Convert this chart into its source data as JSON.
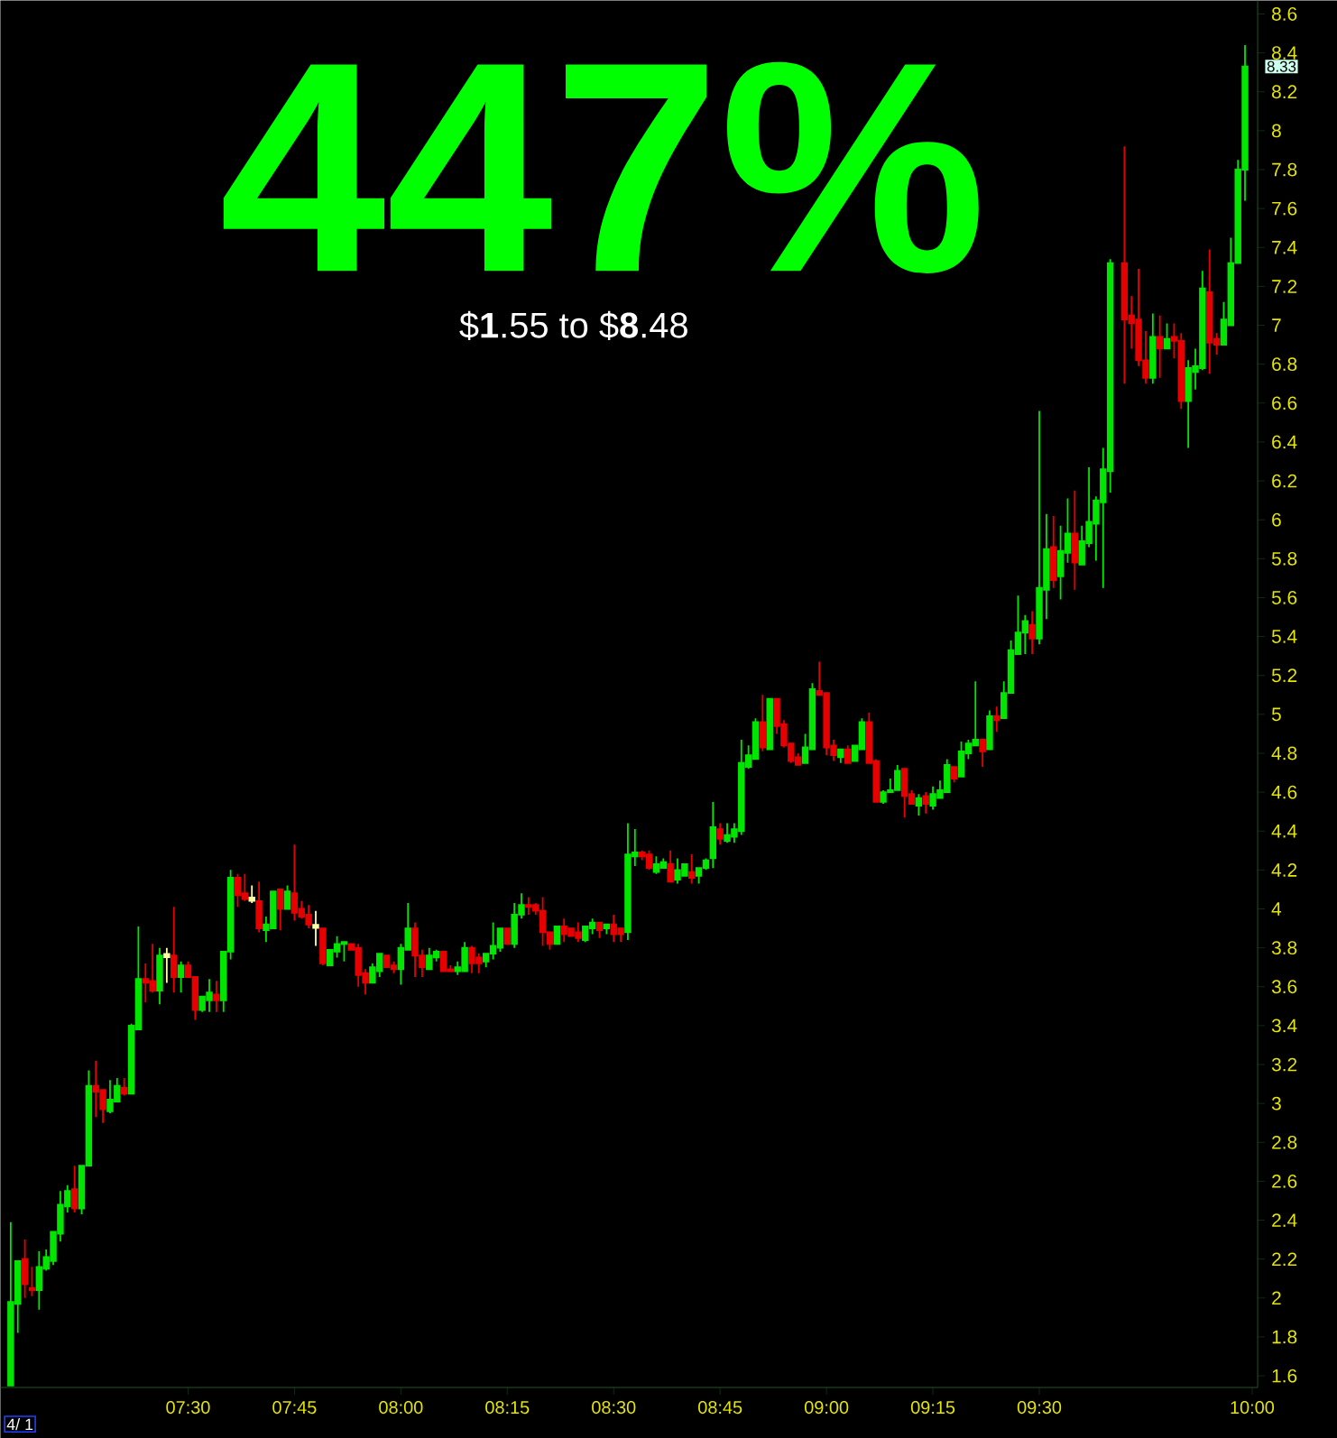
{
  "chart_data": {
    "type": "candlestick",
    "title": "447%",
    "subtitle": "$**1**.55 to $**8**.48",
    "annotations": [
      "4/ 1",
      {
        "text": "8.33",
        "x": 9.9833,
        "y": 8.33
      }
    ],
    "xlim": [
      7.059,
      10.013
    ],
    "ylim": [
      1.54,
      8.67
    ],
    "xticks": [
      {
        "value": 7.5,
        "label": "07:30"
      },
      {
        "value": 7.75,
        "label": "07:45"
      },
      {
        "value": 8,
        "label": "08:00"
      },
      {
        "value": 8.25,
        "label": "08:15"
      },
      {
        "value": 8.5,
        "label": "08:30"
      },
      {
        "value": 8.75,
        "label": "08:45"
      },
      {
        "value": 9,
        "label": "09:00"
      },
      {
        "value": 9.25,
        "label": "09:15"
      },
      {
        "value": 9.5,
        "label": "09:30"
      },
      {
        "value": 10,
        "label": "10:00"
      }
    ],
    "yticks": [
      1.6,
      1.8,
      2,
      2.2,
      2.4,
      2.6,
      2.8,
      3,
      3.2,
      3.4,
      3.6,
      3.8,
      4,
      4.2,
      4.4,
      4.6,
      4.8,
      5,
      5.2,
      5.4,
      5.6,
      5.8,
      6,
      6.2,
      6.4,
      6.6,
      6.8,
      7,
      7.2,
      7.4,
      7.6,
      7.8,
      8,
      8.2,
      8.4,
      8.6
    ],
    "x": [
      7.0833,
      7.1,
      7.1167,
      7.1333,
      7.15,
      7.1667,
      7.1833,
      7.2,
      7.2167,
      7.2333,
      7.25,
      7.2667,
      7.2833,
      7.3,
      7.3167,
      7.3333,
      7.35,
      7.3667,
      7.3833,
      7.4,
      7.4167,
      7.4333,
      7.45,
      7.4667,
      7.4833,
      7.5,
      7.5167,
      7.5333,
      7.55,
      7.5667,
      7.5833,
      7.6,
      7.6167,
      7.6333,
      7.65,
      7.6667,
      7.6833,
      7.7,
      7.7167,
      7.7333,
      7.75,
      7.7667,
      7.7833,
      7.8,
      7.8167,
      7.8333,
      7.85,
      7.8667,
      7.8833,
      7.9,
      7.9167,
      7.9333,
      7.95,
      7.9667,
      7.9833,
      8,
      8.0167,
      8.0333,
      8.05,
      8.0667,
      8.0833,
      8.1,
      8.1167,
      8.1333,
      8.15,
      8.1667,
      8.1833,
      8.2,
      8.2167,
      8.2333,
      8.25,
      8.2667,
      8.2833,
      8.3,
      8.3167,
      8.3333,
      8.35,
      8.3667,
      8.3833,
      8.4,
      8.4167,
      8.4333,
      8.45,
      8.4667,
      8.4833,
      8.5,
      8.5167,
      8.5333,
      8.55,
      8.5667,
      8.5833,
      8.6,
      8.6167,
      8.6333,
      8.65,
      8.6667,
      8.6833,
      8.7,
      8.7167,
      8.7333,
      8.75,
      8.7667,
      8.7833,
      8.8,
      8.8167,
      8.8333,
      8.85,
      8.8667,
      8.8833,
      8.9,
      8.9167,
      8.9333,
      8.95,
      8.9667,
      8.9833,
      9,
      9.0167,
      9.0333,
      9.05,
      9.0667,
      9.0833,
      9.1,
      9.1167,
      9.1333,
      9.15,
      9.1667,
      9.1833,
      9.2,
      9.2167,
      9.2333,
      9.25,
      9.2667,
      9.2833,
      9.3,
      9.3167,
      9.3333,
      9.35,
      9.3667,
      9.3833,
      9.4,
      9.4167,
      9.4333,
      9.45,
      9.4667,
      9.4833,
      9.5,
      9.5167,
      9.5333,
      9.55,
      9.5667,
      9.5833,
      9.6,
      9.6167,
      9.6333,
      9.65,
      9.6667,
      9.7,
      9.7167,
      9.7333,
      9.75,
      9.7667,
      9.7833,
      9.8,
      9.8167,
      9.8333,
      9.85,
      9.8667,
      9.8833,
      9.9,
      9.9167,
      9.9333,
      9.95,
      9.9667,
      9.9833
    ],
    "ohlc": [
      [
        1.55,
        2.39,
        1.55,
        1.98
      ],
      [
        1.97,
        2.19,
        1.82,
        2.19
      ],
      [
        2.2,
        2.3,
        2.0,
        2.07
      ],
      [
        2.05,
        2.16,
        2.01,
        2.04
      ],
      [
        2.04,
        2.24,
        1.94,
        2.16
      ],
      [
        2.15,
        2.25,
        2.14,
        2.21
      ],
      [
        2.19,
        2.34,
        2.17,
        2.34
      ],
      [
        2.33,
        2.55,
        2.29,
        2.48
      ],
      [
        2.47,
        2.58,
        2.44,
        2.55
      ],
      [
        2.56,
        2.68,
        2.44,
        2.46
      ],
      [
        2.46,
        2.68,
        2.43,
        2.68
      ],
      [
        2.68,
        3.17,
        2.68,
        3.09
      ],
      [
        3.09,
        3.22,
        2.93,
        3.06
      ],
      [
        3.07,
        3.07,
        2.9,
        2.97
      ],
      [
        2.96,
        3.12,
        2.95,
        3.02
      ],
      [
        3.01,
        3.13,
        3.01,
        3.09
      ],
      [
        3.08,
        3.13,
        3.04,
        3.05
      ],
      [
        3.05,
        3.41,
        3.05,
        3.4
      ],
      [
        3.38,
        3.91,
        3.38,
        3.64
      ],
      [
        3.64,
        3.72,
        3.52,
        3.62
      ],
      [
        3.63,
        3.82,
        3.57,
        3.58
      ],
      [
        3.58,
        3.8,
        3.51,
        3.76
      ],
      [
        3.76,
        3.8,
        3.62,
        3.76
      ],
      [
        3.76,
        4.01,
        3.57,
        3.65
      ],
      [
        3.65,
        3.73,
        3.57,
        3.71
      ],
      [
        3.71,
        3.73,
        3.65,
        3.65
      ],
      [
        3.65,
        3.65,
        3.43,
        3.48
      ],
      [
        3.48,
        3.55,
        3.47,
        3.55
      ],
      [
        3.53,
        3.64,
        3.47,
        3.57
      ],
      [
        3.56,
        3.63,
        3.47,
        3.53
      ],
      [
        3.53,
        3.78,
        3.47,
        3.78
      ],
      [
        3.78,
        4.2,
        3.74,
        4.16
      ],
      [
        4.16,
        4.18,
        4.01,
        4.07
      ],
      [
        4.08,
        4.18,
        4.04,
        4.05
      ],
      [
        4.05,
        4.12,
        4.03,
        4.05
      ],
      [
        4.04,
        4.14,
        3.88,
        3.9
      ],
      [
        3.89,
        3.96,
        3.83,
        3.92
      ],
      [
        3.9,
        4.09,
        3.9,
        4.09
      ],
      [
        4.1,
        4.1,
        3.89,
        4.0
      ],
      [
        4.0,
        4.12,
        4.0,
        4.09
      ],
      [
        4.08,
        4.33,
        3.94,
        3.98
      ],
      [
        4.0,
        4.04,
        3.95,
        3.96
      ],
      [
        3.97,
        4.02,
        3.9,
        3.92
      ],
      [
        3.91,
        3.99,
        3.81,
        3.91
      ],
      [
        3.9,
        3.9,
        3.71,
        3.72
      ],
      [
        3.71,
        3.79,
        3.71,
        3.79
      ],
      [
        3.78,
        3.86,
        3.75,
        3.82
      ],
      [
        3.82,
        3.83,
        3.73,
        3.83
      ],
      [
        3.82,
        3.82,
        3.79,
        3.79
      ],
      [
        3.8,
        3.82,
        3.6,
        3.66
      ],
      [
        3.67,
        3.69,
        3.56,
        3.62
      ],
      [
        3.62,
        3.72,
        3.62,
        3.7
      ],
      [
        3.68,
        3.77,
        3.65,
        3.77
      ],
      [
        3.76,
        3.76,
        3.7,
        3.7
      ],
      [
        3.71,
        3.73,
        3.67,
        3.69
      ],
      [
        3.69,
        3.82,
        3.61,
        3.8
      ],
      [
        3.79,
        4.03,
        3.79,
        3.9
      ],
      [
        3.9,
        3.93,
        3.65,
        3.76
      ],
      [
        3.76,
        3.79,
        3.65,
        3.7
      ],
      [
        3.69,
        3.8,
        3.69,
        3.76
      ],
      [
        3.75,
        3.79,
        3.73,
        3.78
      ],
      [
        3.78,
        3.78,
        3.68,
        3.68
      ],
      [
        3.69,
        3.71,
        3.68,
        3.68
      ],
      [
        3.68,
        3.73,
        3.66,
        3.7
      ],
      [
        3.68,
        3.83,
        3.68,
        3.8
      ],
      [
        3.8,
        3.81,
        3.67,
        3.72
      ],
      [
        3.75,
        3.77,
        3.67,
        3.72
      ],
      [
        3.73,
        3.77,
        3.7,
        3.77
      ],
      [
        3.77,
        3.93,
        3.74,
        3.81
      ],
      [
        3.8,
        3.9,
        3.78,
        3.9
      ],
      [
        3.9,
        3.9,
        3.82,
        3.82
      ],
      [
        3.82,
        4.03,
        3.8,
        3.97
      ],
      [
        3.97,
        4.08,
        3.95,
        4.02
      ],
      [
        4.02,
        4.06,
        3.97,
        4.01
      ],
      [
        4.02,
        4.03,
        3.97,
        3.99
      ],
      [
        3.99,
        4.06,
        3.81,
        3.88
      ],
      [
        3.88,
        3.88,
        3.79,
        3.82
      ],
      [
        3.82,
        3.91,
        3.82,
        3.91
      ],
      [
        3.91,
        3.95,
        3.83,
        3.87
      ],
      [
        3.9,
        3.9,
        3.86,
        3.86
      ],
      [
        3.88,
        3.93,
        3.83,
        3.85
      ],
      [
        3.84,
        3.91,
        3.83,
        3.91
      ],
      [
        3.9,
        3.95,
        3.87,
        3.93
      ],
      [
        3.93,
        3.93,
        3.85,
        3.89
      ],
      [
        3.9,
        3.92,
        3.87,
        3.92
      ],
      [
        3.92,
        3.97,
        3.83,
        3.87
      ],
      [
        3.9,
        3.9,
        3.83,
        3.87
      ],
      [
        3.88,
        4.44,
        3.84,
        4.28
      ],
      [
        4.27,
        4.41,
        4.22,
        4.29
      ],
      [
        4.29,
        4.3,
        4.25,
        4.27
      ],
      [
        4.28,
        4.3,
        4.2,
        4.21
      ],
      [
        4.19,
        4.27,
        4.18,
        4.23
      ],
      [
        4.21,
        4.26,
        4.21,
        4.24
      ],
      [
        4.23,
        4.3,
        4.14,
        4.14
      ],
      [
        4.15,
        4.26,
        4.13,
        4.2
      ],
      [
        4.17,
        4.23,
        4.17,
        4.23
      ],
      [
        4.19,
        4.28,
        4.13,
        4.16
      ],
      [
        4.17,
        4.21,
        4.13,
        4.21
      ],
      [
        4.21,
        4.26,
        4.2,
        4.25
      ],
      [
        4.26,
        4.55,
        4.21,
        4.42
      ],
      [
        4.41,
        4.44,
        4.33,
        4.36
      ],
      [
        4.35,
        4.44,
        4.34,
        4.38
      ],
      [
        4.37,
        4.44,
        4.34,
        4.41
      ],
      [
        4.4,
        4.87,
        4.38,
        4.75
      ],
      [
        4.73,
        4.84,
        4.72,
        4.79
      ],
      [
        4.77,
        4.98,
        4.77,
        4.96
      ],
      [
        4.96,
        5.1,
        4.81,
        4.83
      ],
      [
        4.82,
        5.08,
        4.82,
        5.08
      ],
      [
        5.08,
        5.08,
        4.9,
        4.94
      ],
      [
        4.95,
        4.97,
        4.83,
        4.84
      ],
      [
        4.85,
        4.85,
        4.75,
        4.76
      ],
      [
        4.78,
        4.8,
        4.74,
        4.74
      ],
      [
        4.75,
        4.9,
        4.75,
        4.83
      ],
      [
        4.82,
        5.16,
        4.82,
        5.13
      ],
      [
        5.12,
        5.27,
        5.1,
        5.1
      ],
      [
        5.11,
        5.11,
        4.79,
        4.83
      ],
      [
        4.84,
        4.87,
        4.76,
        4.79
      ],
      [
        4.78,
        4.82,
        4.75,
        4.82
      ],
      [
        4.82,
        4.84,
        4.75,
        4.75
      ],
      [
        4.76,
        4.84,
        4.76,
        4.84
      ],
      [
        4.82,
        4.98,
        4.82,
        4.96
      ],
      [
        4.96,
        5.01,
        4.75,
        4.75
      ],
      [
        4.76,
        4.77,
        4.55,
        4.55
      ],
      [
        4.55,
        4.61,
        4.54,
        4.6
      ],
      [
        4.6,
        4.67,
        4.6,
        4.61
      ],
      [
        4.61,
        4.74,
        4.61,
        4.71
      ],
      [
        4.72,
        4.72,
        4.47,
        4.58
      ],
      [
        4.59,
        4.61,
        4.54,
        4.54
      ],
      [
        4.53,
        4.59,
        4.48,
        4.57
      ],
      [
        4.58,
        4.6,
        4.49,
        4.54
      ],
      [
        4.53,
        4.63,
        4.51,
        4.59
      ],
      [
        4.57,
        4.66,
        4.57,
        4.61
      ],
      [
        4.6,
        4.77,
        4.6,
        4.74
      ],
      [
        4.73,
        4.73,
        4.65,
        4.67
      ],
      [
        4.68,
        4.86,
        4.68,
        4.81
      ],
      [
        4.8,
        4.87,
        4.77,
        4.85
      ],
      [
        4.84,
        5.17,
        4.84,
        4.87
      ],
      [
        4.87,
        4.87,
        4.73,
        4.81
      ],
      [
        4.82,
        5.02,
        4.82,
        4.99
      ],
      [
        4.99,
        5.04,
        4.91,
        4.97
      ],
      [
        4.98,
        5.17,
        4.98,
        5.11
      ],
      [
        5.11,
        5.38,
        5.11,
        5.33
      ],
      [
        5.31,
        5.61,
        5.31,
        5.42
      ],
      [
        5.42,
        5.51,
        5.31,
        5.48
      ],
      [
        5.46,
        5.53,
        5.31,
        5.39
      ],
      [
        5.39,
        6.56,
        5.36,
        5.65
      ],
      [
        5.64,
        6.03,
        5.49,
        5.85
      ],
      [
        5.86,
        6.02,
        5.65,
        5.69
      ],
      [
        5.71,
        5.97,
        5.59,
        5.84
      ],
      [
        5.83,
        6.11,
        5.78,
        5.93
      ],
      [
        5.93,
        6.15,
        5.64,
        5.78
      ],
      [
        5.77,
        5.97,
        5.77,
        5.89
      ],
      [
        5.88,
        6.27,
        5.86,
        5.99
      ],
      [
        5.98,
        6.12,
        5.79,
        6.1
      ],
      [
        6.09,
        6.37,
        5.65,
        6.26
      ],
      [
        6.25,
        7.34,
        6.14,
        7.32
      ],
      [
        7.32,
        7.92,
        6.7,
        7.03
      ],
      [
        7.05,
        7.15,
        6.88,
        7.01
      ],
      [
        7.03,
        7.29,
        6.79,
        6.82
      ],
      [
        6.82,
        6.97,
        6.7,
        6.73
      ],
      [
        6.73,
        7.06,
        6.7,
        6.94
      ],
      [
        6.94,
        7.05,
        6.73,
        6.88
      ],
      [
        6.88,
        7.01,
        6.88,
        6.93
      ],
      [
        6.94,
        7.01,
        6.83,
        6.92
      ],
      [
        6.92,
        6.96,
        6.57,
        6.61
      ],
      [
        6.61,
        6.82,
        6.37,
        6.78
      ],
      [
        6.76,
        6.88,
        6.67,
        6.79
      ],
      [
        6.78,
        7.28,
        6.77,
        7.19
      ],
      [
        7.17,
        7.39,
        6.75,
        6.91
      ],
      [
        6.93,
        6.96,
        6.85,
        6.9
      ],
      [
        6.9,
        7.12,
        6.9,
        7.03
      ],
      [
        7.0,
        7.45,
        7.0,
        7.32
      ],
      [
        7.32,
        7.85,
        7.32,
        7.8
      ],
      [
        7.8,
        8.44,
        7.64,
        8.33
      ]
    ],
    "colors": [
      "#00e600",
      "#00e600",
      "#e60000",
      "#e60000",
      "#00e600",
      "#00e600",
      "#00e600",
      "#00e600",
      "#00e600",
      "#e60000",
      "#00e600",
      "#00e600",
      "#e60000",
      "#e60000",
      "#00e600",
      "#00e600",
      "#e60000",
      "#00e600",
      "#00e600",
      "#e60000",
      "#e60000",
      "#00e600",
      "#ffffaa",
      "#e60000",
      "#00e600",
      "#e60000",
      "#e60000",
      "#00e600",
      "#00e600",
      "#e60000",
      "#00e600",
      "#00e600",
      "#e60000",
      "#e60000",
      "#ffffaa",
      "#e60000",
      "#00e600",
      "#00e600",
      "#e60000",
      "#00e600",
      "#e60000",
      "#e60000",
      "#e60000",
      "#ffffaa",
      "#e60000",
      "#00e600",
      "#00e600",
      "#00e600",
      "#e60000",
      "#e60000",
      "#e60000",
      "#00e600",
      "#00e600",
      "#e60000",
      "#e60000",
      "#00e600",
      "#00e600",
      "#e60000",
      "#e60000",
      "#00e600",
      "#00e600",
      "#e60000",
      "#e60000",
      "#00e600",
      "#00e600",
      "#e60000",
      "#e60000",
      "#00e600",
      "#00e600",
      "#00e600",
      "#e60000",
      "#00e600",
      "#00e600",
      "#e60000",
      "#e60000",
      "#e60000",
      "#e60000",
      "#00e600",
      "#e60000",
      "#e60000",
      "#e60000",
      "#00e600",
      "#00e600",
      "#e60000",
      "#00e600",
      "#e60000",
      "#e60000",
      "#00e600",
      "#00e600",
      "#e60000",
      "#e60000",
      "#00e600",
      "#00e600",
      "#e60000",
      "#00e600",
      "#00e600",
      "#e60000",
      "#00e600",
      "#00e600",
      "#00e600",
      "#e60000",
      "#00e600",
      "#00e600",
      "#00e600",
      "#00e600",
      "#00e600",
      "#e60000",
      "#00e600",
      "#e60000",
      "#e60000",
      "#e60000",
      "#e60000",
      "#00e600",
      "#00e600",
      "#e60000",
      "#e60000",
      "#e60000",
      "#00e600",
      "#e60000",
      "#00e600",
      "#00e600",
      "#e60000",
      "#e60000",
      "#00e600",
      "#00e600",
      "#00e600",
      "#e60000",
      "#e60000",
      "#00e600",
      "#e60000",
      "#00e600",
      "#00e600",
      "#00e600",
      "#e60000",
      "#00e600",
      "#00e600",
      "#00e600",
      "#e60000",
      "#00e600",
      "#e60000",
      "#00e600",
      "#00e600",
      "#00e600",
      "#00e600",
      "#e60000",
      "#00e600",
      "#00e600",
      "#e60000",
      "#00e600",
      "#00e600",
      "#e60000",
      "#00e600",
      "#00e600",
      "#00e600",
      "#00e600",
      "#00e600",
      "#e60000",
      "#e60000",
      "#e60000",
      "#e60000",
      "#00e600",
      "#e60000",
      "#00e600",
      "#e60000",
      "#e60000",
      "#00e600",
      "#00e600",
      "#00e600",
      "#e60000",
      "#e60000",
      "#00e600",
      "#00e600",
      "#00e600",
      "#00e600"
    ]
  }
}
